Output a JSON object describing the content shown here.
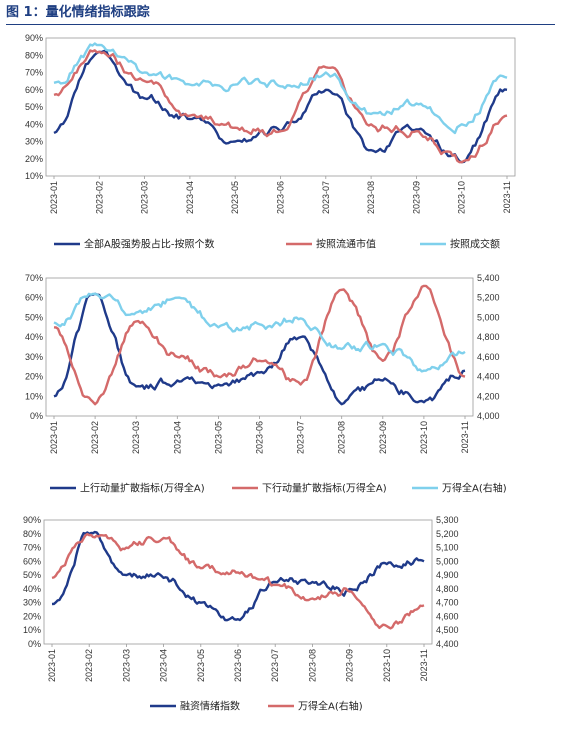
{
  "figure_title": "图 1：量化情绪指标跟踪",
  "chart_data": [
    {
      "type": "line",
      "x": [
        "2023-01",
        "2023-02",
        "2023-03",
        "2023-04",
        "2023-05",
        "2023-06",
        "2023-07",
        "2023-08",
        "2023-09",
        "2023-10",
        "2023-11"
      ],
      "y_ticks": [
        "90%",
        "80%",
        "70%",
        "60%",
        "50%",
        "40%",
        "30%",
        "20%",
        "10%"
      ],
      "ylim": [
        0.1,
        0.9
      ],
      "legend_position": "bottom",
      "series": [
        {
          "name": "全部A股强势股占比-按照个数",
          "color": "#1f3a8a",
          "values": [
            0.35,
            0.82,
            0.55,
            0.43,
            0.3,
            0.36,
            0.6,
            0.25,
            0.37,
            0.18,
            0.6
          ]
        },
        {
          "name": "按照流通市值",
          "color": "#d46a6a",
          "values": [
            0.57,
            0.82,
            0.65,
            0.45,
            0.38,
            0.36,
            0.73,
            0.4,
            0.36,
            0.18,
            0.45
          ]
        },
        {
          "name": "按照成交额",
          "color": "#7fd0ec",
          "values": [
            0.64,
            0.86,
            0.7,
            0.63,
            0.63,
            0.62,
            0.7,
            0.46,
            0.52,
            0.4,
            0.67
          ]
        }
      ]
    },
    {
      "type": "line",
      "x": [
        "2023-01",
        "2023-02",
        "2023-03",
        "2023-04",
        "2023-05",
        "2023-06",
        "2023-07",
        "2023-08",
        "2023-09",
        "2023-10",
        "2023-11"
      ],
      "y_ticks": [
        "70%",
        "60%",
        "50%",
        "40%",
        "30%",
        "20%",
        "10%",
        "0%"
      ],
      "ylim": [
        0,
        0.7
      ],
      "y2_ticks": [
        "5,400",
        "5,200",
        "5,000",
        "4,800",
        "4,600",
        "4,400",
        "4,200",
        "4,000"
      ],
      "y2lim": [
        4000,
        5400
      ],
      "legend_position": "bottom",
      "series": [
        {
          "name": "上行动量扩散指标(万得全A)",
          "axis": "left",
          "color": "#1f3a8a",
          "values": [
            0.1,
            0.62,
            0.15,
            0.18,
            0.16,
            0.22,
            0.4,
            0.06,
            0.18,
            0.07,
            0.23
          ]
        },
        {
          "name": "下行动量扩散指标(万得全A)",
          "axis": "left",
          "color": "#d46a6a",
          "values": [
            0.45,
            0.06,
            0.48,
            0.3,
            0.2,
            0.28,
            0.16,
            0.64,
            0.28,
            0.66,
            0.2
          ]
        },
        {
          "name": "万得全A(右轴)",
          "axis": "right",
          "color": "#7fd0ec",
          "values": [
            4950,
            5240,
            5050,
            5200,
            4900,
            4930,
            4990,
            4680,
            4730,
            4460,
            4650
          ]
        }
      ]
    },
    {
      "type": "line",
      "x": [
        "2023-01",
        "2023-02",
        "2023-03",
        "2023-04",
        "2023-05",
        "2023-06",
        "2023-07",
        "2023-08",
        "2023-09",
        "2023-10",
        "2023-11"
      ],
      "y_ticks": [
        "90%",
        "80%",
        "70%",
        "60%",
        "50%",
        "40%",
        "30%",
        "20%",
        "10%",
        "0%"
      ],
      "ylim": [
        0,
        0.9
      ],
      "y2_ticks": [
        "5,300",
        "5,200",
        "5,100",
        "5,000",
        "4,900",
        "4,800",
        "4,700",
        "4,600",
        "4,500",
        "4,400"
      ],
      "y2lim": [
        4400,
        5300
      ],
      "legend_position": "bottom",
      "series": [
        {
          "name": "融资情绪指数",
          "axis": "left",
          "color": "#1f3a8a",
          "values": [
            0.29,
            0.8,
            0.5,
            0.48,
            0.3,
            0.18,
            0.45,
            0.45,
            0.4,
            0.58,
            0.6
          ]
        },
        {
          "name": "万得全A(右轴)",
          "axis": "right",
          "color": "#d46a6a",
          "values": [
            4880,
            5190,
            5100,
            5170,
            4950,
            4920,
            4830,
            4730,
            4780,
            4530,
            4680
          ]
        }
      ]
    }
  ]
}
